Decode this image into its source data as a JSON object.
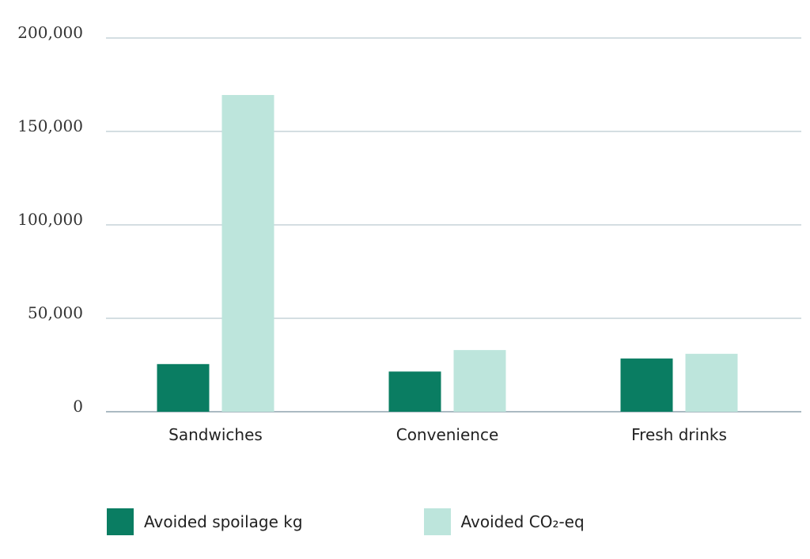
{
  "chart_data": {
    "type": "bar",
    "categories": [
      "Sandwiches",
      "Convenience",
      "Fresh drinks"
    ],
    "series": [
      {
        "name": "Avoided spoilage kg",
        "color": "#0a7d62",
        "values": [
          25500,
          21500,
          28500
        ]
      },
      {
        "name": "Avoided CO₂-eq",
        "color": "#bde5dc",
        "values": [
          169500,
          33000,
          31000
        ]
      }
    ],
    "yticks": [
      0,
      50000,
      100000,
      150000,
      200000
    ],
    "ytick_labels": [
      "0",
      "50,000",
      "100,000",
      "150,000",
      "200,000"
    ],
    "ylim": [
      0,
      200000
    ],
    "title": "",
    "xlabel": "",
    "ylabel": "",
    "grid": true,
    "legend_position": "bottom"
  },
  "colors": {
    "gridline": "#a9bcc4",
    "axis": "#8fa3ad"
  }
}
